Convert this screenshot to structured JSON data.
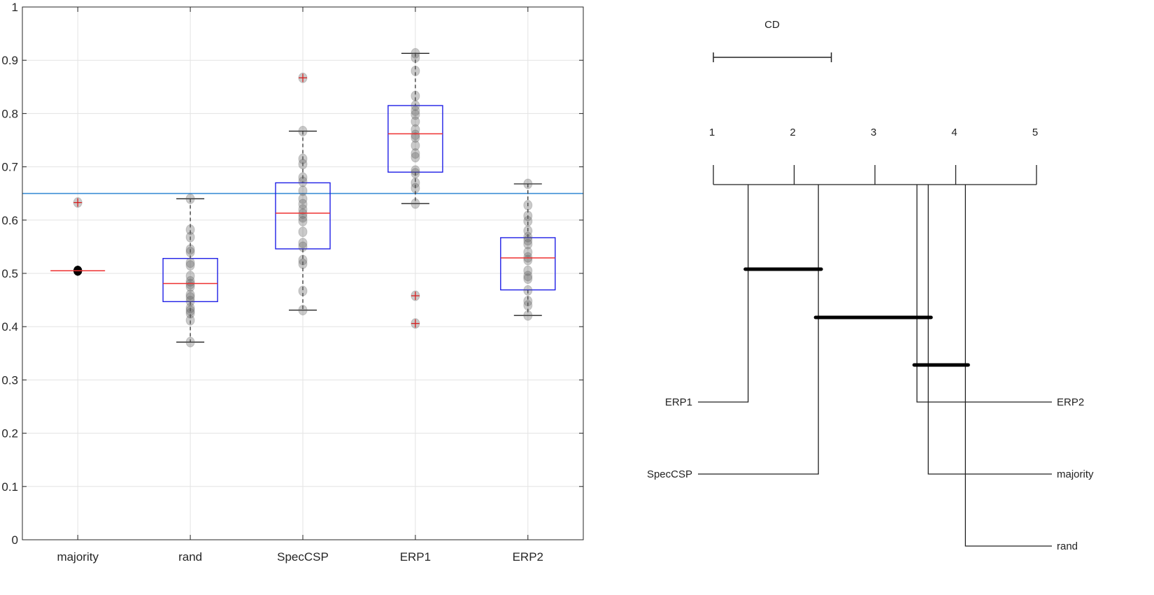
{
  "chart_data": [
    {
      "type": "box",
      "title": "",
      "xlabel": "",
      "ylabel": "",
      "ylim": [
        0,
        1
      ],
      "yticks": [
        "0",
        "0.1",
        "0.2",
        "0.3",
        "0.4",
        "0.5",
        "0.6",
        "0.7",
        "0.8",
        "0.9",
        "1"
      ],
      "grid": true,
      "categories": [
        "majority",
        "rand",
        "SpecCSP",
        "ERP1",
        "ERP2"
      ],
      "reference_line": {
        "y": 0.65,
        "color": "#3d8fd6"
      },
      "series": [
        {
          "name": "majority",
          "q1": 0.505,
          "median": 0.505,
          "q3": 0.505,
          "whisker_low": 0.505,
          "whisker_high": 0.505,
          "outliers": [
            0.633
          ],
          "points": [
            0.505,
            0.505,
            0.505,
            0.505,
            0.505,
            0.505,
            0.633
          ]
        },
        {
          "name": "rand",
          "q1": 0.447,
          "median": 0.481,
          "q3": 0.528,
          "whisker_low": 0.371,
          "whisker_high": 0.64,
          "outliers": [],
          "points": [
            0.64,
            0.582,
            0.568,
            0.545,
            0.54,
            0.52,
            0.515,
            0.495,
            0.485,
            0.48,
            0.475,
            0.46,
            0.455,
            0.448,
            0.435,
            0.43,
            0.425,
            0.412,
            0.371
          ]
        },
        {
          "name": "SpecCSP",
          "q1": 0.546,
          "median": 0.613,
          "q3": 0.67,
          "whisker_low": 0.431,
          "whisker_high": 0.767,
          "outliers": [
            0.867
          ],
          "points": [
            0.867,
            0.767,
            0.715,
            0.705,
            0.68,
            0.672,
            0.655,
            0.64,
            0.63,
            0.62,
            0.612,
            0.605,
            0.598,
            0.578,
            0.557,
            0.55,
            0.525,
            0.518,
            0.467,
            0.431
          ]
        },
        {
          "name": "ERP1",
          "q1": 0.69,
          "median": 0.762,
          "q3": 0.815,
          "whisker_low": 0.631,
          "whisker_high": 0.913,
          "outliers": [
            0.458,
            0.406
          ],
          "points": [
            0.913,
            0.905,
            0.88,
            0.833,
            0.815,
            0.805,
            0.798,
            0.785,
            0.77,
            0.76,
            0.755,
            0.74,
            0.725,
            0.718,
            0.693,
            0.688,
            0.67,
            0.66,
            0.631,
            0.458,
            0.406
          ]
        },
        {
          "name": "ERP2",
          "q1": 0.469,
          "median": 0.529,
          "q3": 0.567,
          "whisker_low": 0.421,
          "whisker_high": 0.668,
          "outliers": [],
          "points": [
            0.668,
            0.628,
            0.608,
            0.598,
            0.58,
            0.568,
            0.562,
            0.555,
            0.54,
            0.53,
            0.525,
            0.505,
            0.495,
            0.49,
            0.468,
            0.448,
            0.44,
            0.421
          ]
        }
      ]
    },
    {
      "type": "critical-difference-diagram",
      "title": "CD",
      "cd_value": 1.46,
      "axis_range": [
        1,
        5
      ],
      "axis_ticks": [
        "1",
        "2",
        "3",
        "4",
        "5"
      ],
      "ranks": [
        {
          "name": "ERP1",
          "rank": 1.43,
          "side": "left"
        },
        {
          "name": "SpecCSP",
          "rank": 2.3,
          "side": "left"
        },
        {
          "name": "ERP2",
          "rank": 3.52,
          "side": "right"
        },
        {
          "name": "majority",
          "rank": 3.66,
          "side": "right"
        },
        {
          "name": "rand",
          "rank": 4.12,
          "side": "right"
        }
      ],
      "cliques": [
        {
          "from": 1.43,
          "to": 2.3
        },
        {
          "from": 2.3,
          "to": 3.66
        },
        {
          "from": 3.52,
          "to": 4.12
        }
      ]
    }
  ],
  "labels": {
    "cd": "CD",
    "axis": [
      "1",
      "2",
      "3",
      "4",
      "5"
    ],
    "left": [
      "ERP1",
      "SpecCSP"
    ],
    "right": [
      "ERP2",
      "majority",
      "rand"
    ]
  }
}
